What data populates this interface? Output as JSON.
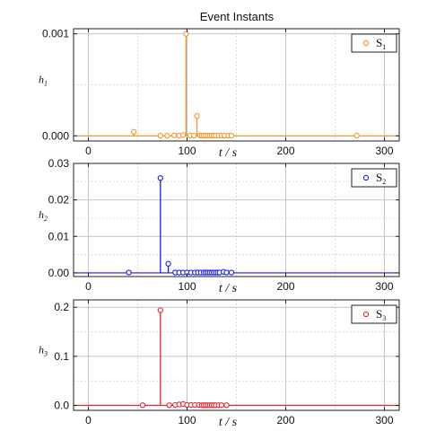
{
  "chart_data": {
    "type": "stem",
    "title": "Event Instants",
    "xlabel": "t/s",
    "xlim": [
      -15,
      315
    ],
    "xticks": [
      0,
      100,
      200,
      300
    ],
    "grid": true,
    "legend_position": "top-right",
    "subplots": [
      {
        "ylabel": "h",
        "ylabel_sub": "1",
        "legend": "S",
        "legend_sub": "1",
        "color": "#f0962a",
        "ylim": [
          -5e-05,
          0.00105
        ],
        "yticks": [
          0,
          0.001
        ],
        "ytick_labels": [
          "0.000",
          "0.001"
        ],
        "x": [
          46,
          73,
          80,
          87,
          92,
          96,
          99,
          103,
          107,
          110,
          113,
          115,
          117,
          119,
          121,
          123,
          125,
          127,
          129,
          132,
          135,
          138,
          142,
          145,
          272
        ],
        "y": [
          4e-05,
          3e-06,
          2e-06,
          5e-06,
          3e-06,
          8e-06,
          0.001,
          5e-06,
          3e-06,
          0.000195,
          5e-06,
          3e-06,
          3e-06,
          3e-06,
          3e-06,
          3e-06,
          3e-06,
          3e-06,
          3e-06,
          3e-06,
          3e-06,
          3e-06,
          3e-06,
          3e-06,
          3e-06
        ]
      },
      {
        "ylabel": "h",
        "ylabel_sub": "2",
        "legend": "S",
        "legend_sub": "2",
        "color": "#1c1ce8",
        "ylim": [
          -0.001,
          0.03
        ],
        "yticks": [
          0,
          0.01,
          0.02,
          0.03
        ],
        "ytick_labels": [
          "0.00",
          "0.01",
          "0.02",
          "0.03"
        ],
        "x": [
          41,
          73,
          81,
          88,
          92,
          96,
          100,
          104,
          108,
          111,
          114,
          117,
          119,
          121,
          123,
          125,
          127,
          129,
          131,
          133,
          137,
          140,
          145
        ],
        "y": [
          0.0001,
          0.026,
          0.0025,
          0.0001,
          0.0001,
          0.0001,
          0.0001,
          0.0001,
          0.0001,
          0.0001,
          0.0001,
          0.0001,
          0.0001,
          0.0001,
          0.0001,
          0.0001,
          0.0001,
          0.0001,
          0.0001,
          0.0001,
          0.0003,
          0.0001,
          0.0001
        ]
      },
      {
        "ylabel": "h",
        "ylabel_sub": "3",
        "legend": "S",
        "legend_sub": "3",
        "color": "#e8242b",
        "ylim": [
          -0.01,
          0.215
        ],
        "yticks": [
          0,
          0.1,
          0.2
        ],
        "ytick_labels": [
          "0.0",
          "0.1",
          "0.2"
        ],
        "x": [
          55,
          73,
          82,
          88,
          92,
          96,
          100,
          104,
          108,
          112,
          115,
          117,
          119,
          121,
          123,
          125,
          127,
          129,
          132,
          135,
          140
        ],
        "y": [
          0.0005,
          0.194,
          0.0005,
          0.001,
          0.002,
          0.003,
          0.001,
          0.001,
          0.001,
          0.001,
          0.0005,
          0.0005,
          0.0005,
          0.0005,
          0.0005,
          0.0005,
          0.0005,
          0.0005,
          0.0005,
          0.0005,
          0.0005
        ]
      }
    ]
  }
}
